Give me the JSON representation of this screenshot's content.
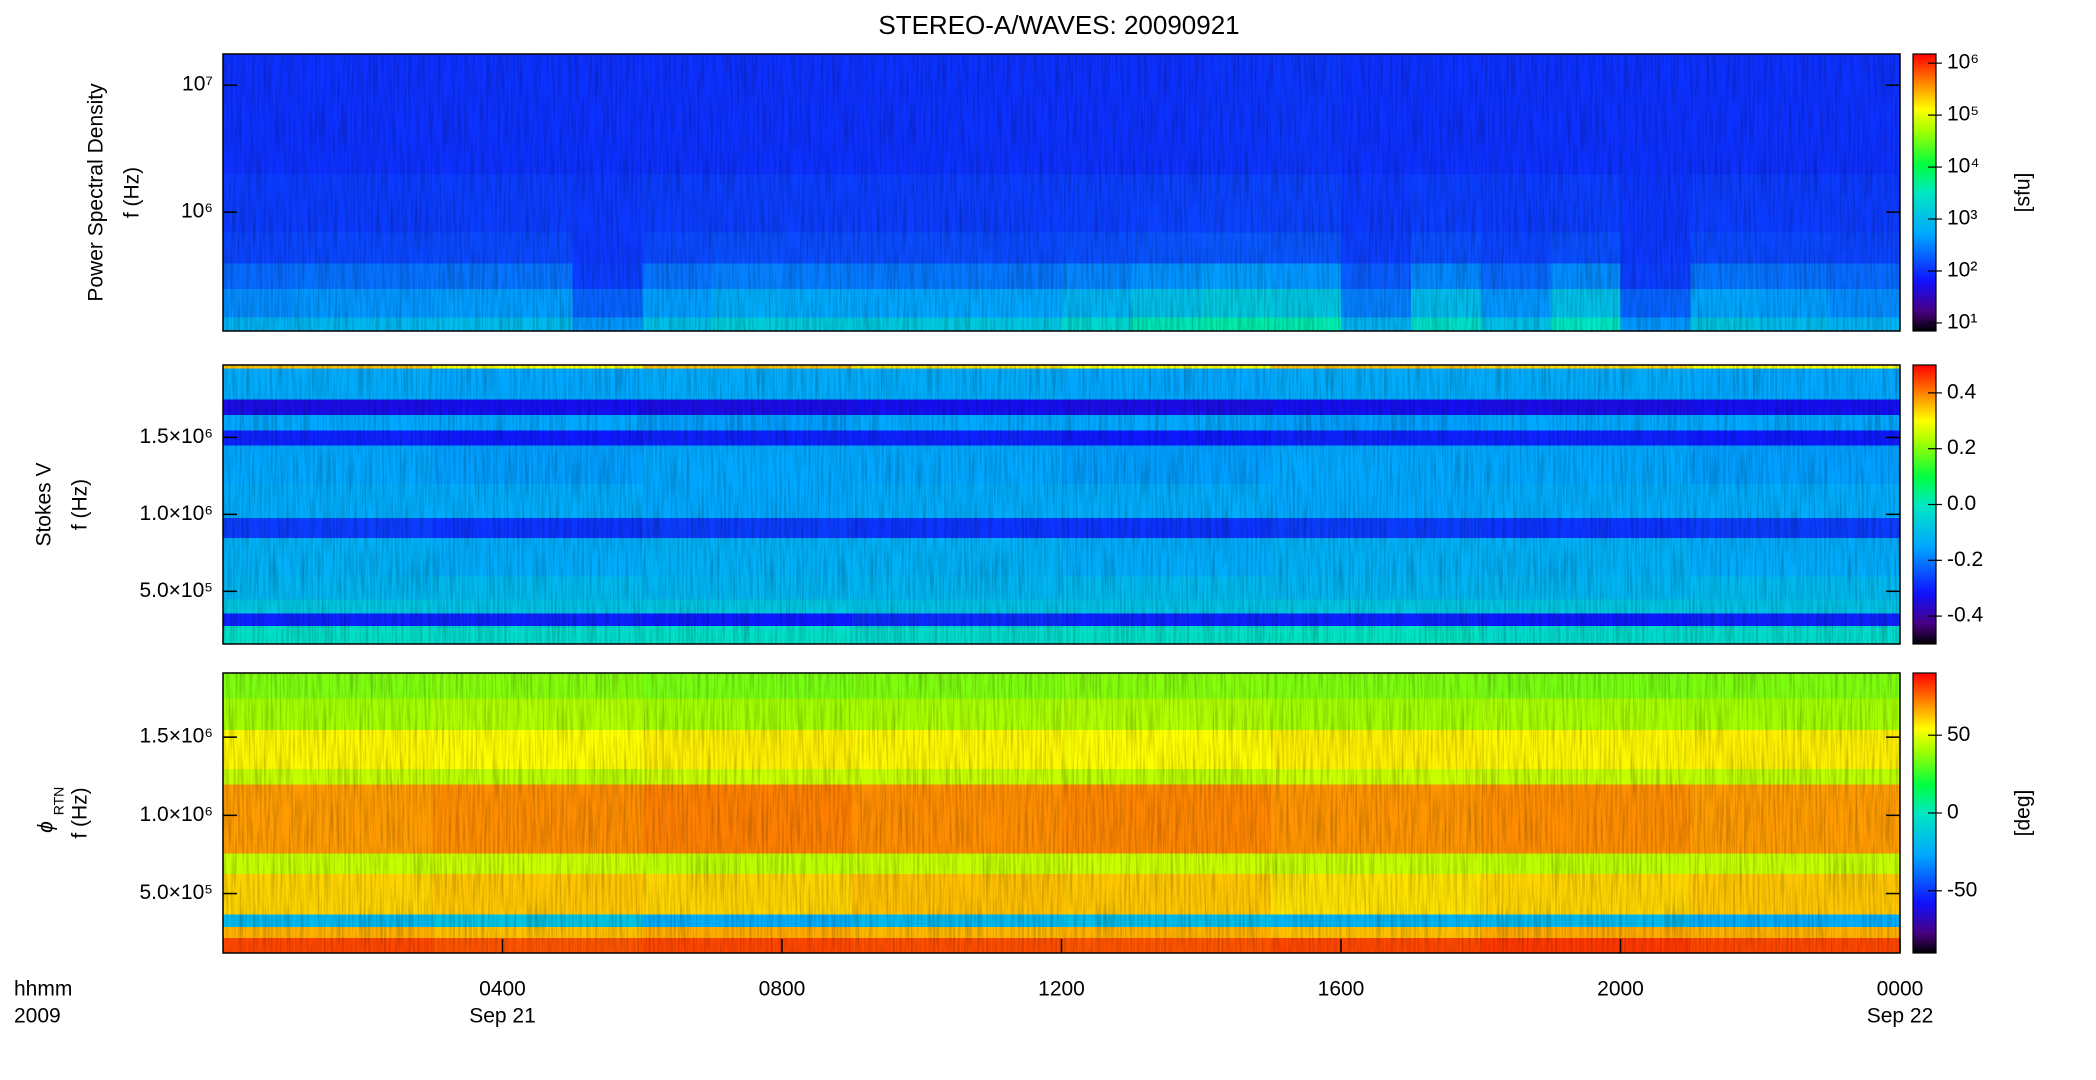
{
  "chart_data": [
    {
      "type": "heatmap",
      "title": "STEREO-A/WAVES: 20090921",
      "quantity": "Power Spectral Density",
      "ylabel": "f (Hz)",
      "yscale": "log",
      "ylim": [
        116000,
        17600000
      ],
      "yticks": [
        {
          "value": 1000000,
          "label": "10⁶"
        },
        {
          "value": 10000000,
          "label": "10⁷"
        }
      ],
      "xlim": [
        0,
        24
      ],
      "time_bins": [
        0,
        1,
        2,
        3,
        4,
        5,
        6,
        7,
        8,
        9,
        10,
        11,
        12,
        13,
        14,
        15,
        16,
        17,
        18,
        19,
        20,
        21,
        22,
        23,
        24
      ],
      "freq_bins": [
        116000,
        150000,
        250000,
        400000,
        700000,
        2000000,
        17600000
      ],
      "values": [
        [
          700,
          800,
          800,
          900,
          900,
          400,
          1000,
          1500,
          1400,
          1300,
          1300,
          1200,
          2000,
          3500,
          4000,
          3800,
          700,
          2500,
          1000,
          3000,
          400,
          1200,
          900,
          700
        ],
        [
          350,
          400,
          400,
          450,
          450,
          200,
          450,
          600,
          550,
          500,
          500,
          500,
          700,
          1000,
          1300,
          1200,
          300,
          900,
          400,
          1000,
          200,
          500,
          450,
          350
        ],
        [
          220,
          240,
          240,
          250,
          250,
          120,
          250,
          300,
          280,
          270,
          270,
          260,
          320,
          380,
          450,
          400,
          180,
          330,
          220,
          350,
          120,
          260,
          240,
          220
        ],
        [
          130,
          135,
          135,
          140,
          140,
          110,
          140,
          150,
          145,
          145,
          145,
          140,
          150,
          160,
          170,
          165,
          120,
          150,
          130,
          150,
          110,
          140,
          135,
          130
        ],
        [
          115,
          115,
          115,
          118,
          118,
          110,
          118,
          120,
          120,
          118,
          118,
          118,
          122,
          125,
          128,
          126,
          112,
          120,
          115,
          120,
          108,
          118,
          115,
          115
        ],
        [
          100,
          100,
          100,
          100,
          102,
          100,
          100,
          100,
          100,
          100,
          102,
          100,
          100,
          100,
          104,
          108,
          100,
          100,
          100,
          100,
          100,
          100,
          100,
          100
        ]
      ],
      "clim": [
        7,
        1500000
      ],
      "cscale": "log",
      "cticks": [
        {
          "value": 10,
          "label": "10¹"
        },
        {
          "value": 100,
          "label": "10²"
        },
        {
          "value": 1000,
          "label": "10³"
        },
        {
          "value": 10000,
          "label": "10⁴"
        },
        {
          "value": 100000,
          "label": "10⁵"
        },
        {
          "value": 1000000,
          "label": "10⁶"
        }
      ],
      "clabel": "[sfu]"
    },
    {
      "type": "heatmap",
      "quantity": "Stokes V",
      "ylabel": "f (Hz)",
      "yscale": "linear",
      "ylim": [
        158000,
        1970000
      ],
      "yticks": [
        {
          "value": 500000,
          "label": "5.0×10⁵"
        },
        {
          "value": 1000000,
          "label": "1.0×10⁶"
        },
        {
          "value": 1500000,
          "label": "1.5×10⁶"
        }
      ],
      "xlim": [
        0,
        24
      ],
      "time_bins": [
        0,
        3,
        6,
        9,
        12,
        15,
        18,
        21,
        24
      ],
      "freq_bins": [
        158000,
        280000,
        360000,
        450000,
        600000,
        850000,
        980000,
        1200000,
        1450000,
        1550000,
        1650000,
        1750000,
        1950000,
        1970000
      ],
      "values": [
        [
          -0.02,
          -0.03,
          -0.02,
          -0.03,
          -0.02,
          -0.01,
          -0.03,
          -0.03
        ],
        [
          -0.3,
          -0.3,
          -0.31,
          -0.29,
          -0.3,
          -0.3,
          -0.31,
          -0.3
        ],
        [
          -0.08,
          -0.09,
          -0.08,
          -0.09,
          -0.09,
          -0.08,
          -0.08,
          -0.09
        ],
        [
          -0.12,
          -0.11,
          -0.12,
          -0.12,
          -0.11,
          -0.12,
          -0.12,
          -0.11
        ],
        [
          -0.13,
          -0.14,
          -0.13,
          -0.13,
          -0.14,
          -0.13,
          -0.13,
          -0.14
        ],
        [
          -0.27,
          -0.28,
          -0.27,
          -0.28,
          -0.28,
          -0.27,
          -0.28,
          -0.27
        ],
        [
          -0.14,
          -0.14,
          -0.15,
          -0.14,
          -0.14,
          -0.15,
          -0.14,
          -0.14
        ],
        [
          -0.15,
          -0.16,
          -0.15,
          -0.15,
          -0.16,
          -0.15,
          -0.15,
          -0.16
        ],
        [
          -0.3,
          -0.31,
          -0.3,
          -0.3,
          -0.31,
          -0.3,
          -0.3,
          -0.31
        ],
        [
          -0.15,
          -0.15,
          -0.16,
          -0.15,
          -0.15,
          -0.16,
          -0.15,
          -0.15
        ],
        [
          -0.34,
          -0.33,
          -0.34,
          -0.33,
          -0.34,
          -0.33,
          -0.34,
          -0.33
        ],
        [
          -0.14,
          -0.15,
          -0.14,
          -0.14,
          -0.15,
          -0.14,
          -0.14,
          -0.15
        ],
        [
          0.35,
          0.3,
          0.35,
          0.32,
          0.3,
          0.35,
          0.33,
          0.3
        ]
      ],
      "clim": [
        -0.5,
        0.5
      ],
      "cscale": "linear",
      "cticks": [
        0.4,
        0.2,
        {
          "value": 0,
          "label": "0.0"
        },
        -0.2,
        -0.4
      ]
    },
    {
      "type": "heatmap",
      "quantity": "ϕ",
      "quantity_subscript": "RTN",
      "ylabel": "f (Hz)",
      "yscale": "linear",
      "ylim": [
        120000,
        1910000
      ],
      "yticks": [
        {
          "value": 500000,
          "label": "5.0×10⁵"
        },
        {
          "value": 1000000,
          "label": "1.0×10⁶"
        },
        {
          "value": 1500000,
          "label": "1.5×10⁶"
        }
      ],
      "xlim": [
        0,
        24
      ],
      "xticks": [
        {
          "value": 4,
          "label": "0400"
        },
        {
          "value": 8,
          "label": "0800"
        },
        {
          "value": 12,
          "label": "1200"
        },
        {
          "value": 16,
          "label": "1600"
        },
        {
          "value": 20,
          "label": "2000"
        },
        {
          "value": 24,
          "label": "0000"
        }
      ],
      "xtick_dates": [
        {
          "value": 4,
          "label": "Sep 21"
        },
        {
          "value": 24,
          "label": "Sep 22"
        }
      ],
      "xlabel": [
        "hhmm",
        "2009"
      ],
      "time_bins": [
        0,
        3,
        6,
        9,
        12,
        15,
        18,
        21,
        24
      ],
      "freq_bins": [
        120000,
        220000,
        290000,
        370000,
        630000,
        760000,
        1200000,
        1300000,
        1550000,
        1750000,
        1910000
      ],
      "values": [
        [
          80,
          78,
          80,
          79,
          78,
          80,
          82,
          80
        ],
        [
          65,
          63,
          66,
          64,
          65,
          63,
          66,
          65
        ],
        [
          -20,
          -15,
          -25,
          -20,
          -18,
          -22,
          -20,
          -25
        ],
        [
          60,
          62,
          60,
          63,
          62,
          58,
          60,
          62
        ],
        [
          45,
          46,
          44,
          45,
          46,
          45,
          44,
          45
        ],
        [
          68,
          70,
          72,
          70,
          71,
          69,
          70,
          68
        ],
        [
          45,
          44,
          46,
          45,
          44,
          46,
          45,
          44
        ],
        [
          55,
          54,
          56,
          55,
          54,
          56,
          55,
          56
        ],
        [
          40,
          42,
          40,
          41,
          42,
          40,
          41,
          40
        ],
        [
          35,
          36,
          34,
          35,
          36,
          35,
          34,
          35
        ]
      ],
      "clim": [
        -90,
        90
      ],
      "cscale": "linear",
      "cticks": [
        50,
        0,
        -50
      ],
      "clabel": "[deg]"
    }
  ]
}
